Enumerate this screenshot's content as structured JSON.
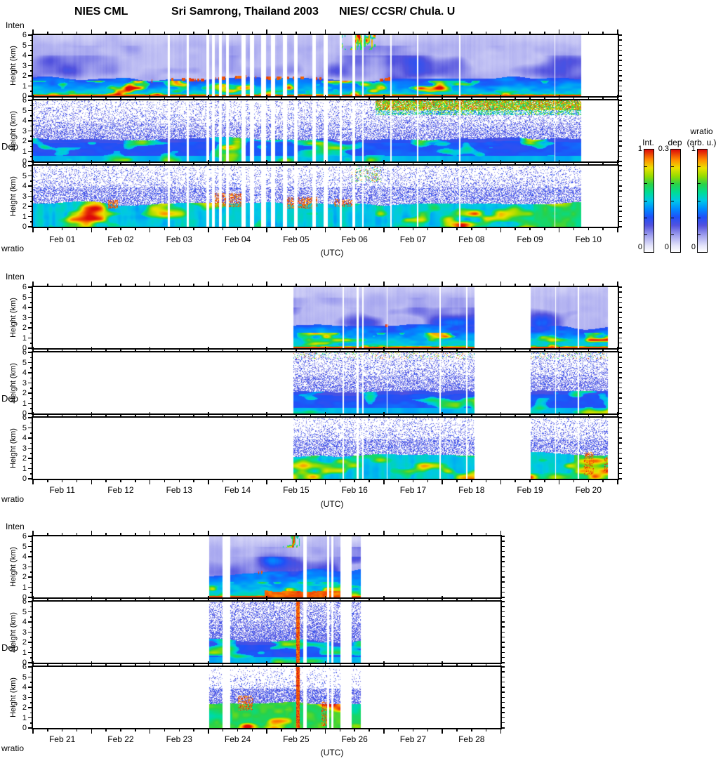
{
  "title": {
    "instrument": "NIES CML",
    "site": "Sri Samrong, Thailand 2003",
    "institutions": "NIES/ CCSR/ Chula. U"
  },
  "panel_labels": {
    "top": "Inten",
    "middle": "Dep",
    "bottom": "wratio"
  },
  "axis": {
    "ylabel": "Height (km)",
    "xlabel": "(UTC)",
    "ytick_labels": [
      "0",
      "1",
      "2",
      "3",
      "4",
      "5",
      "6"
    ]
  },
  "colorbars": [
    {
      "title": "Int.",
      "subtitle": "",
      "max": "1",
      "min": "0"
    },
    {
      "title": "dep",
      "subtitle": "",
      "max": "0.3",
      "min": "0"
    },
    {
      "title": "wratio",
      "subtitle": "(arb. u.)",
      "max": "1",
      "min": "0"
    }
  ],
  "chart_data": {
    "type": "heatmap",
    "description": "Lidar time-height quicklooks for February 2003 at Sri Samrong, Thailand: rows are backscatter intensity (Inten), depolarization (Dep) and scattering ratio (wratio); three stacked date groups Feb 01-10, Feb 11-20, Feb 21-28, height 0-6 km, time axis in UTC.",
    "height_range_km": [
      0,
      6
    ],
    "ytick_km": [
      0,
      1,
      2,
      3,
      4,
      5,
      6
    ],
    "rows": [
      "Inten",
      "Dep",
      "wratio"
    ],
    "colorbar_ranges": {
      "intensity": [
        0,
        1
      ],
      "depolarization": [
        0,
        0.3
      ],
      "wratio_arb_units": [
        0,
        1
      ]
    },
    "colormap": [
      [
        0.0,
        "#ffffff"
      ],
      [
        0.06,
        "#e4e4fa"
      ],
      [
        0.16,
        "#a2a2ee"
      ],
      [
        0.26,
        "#5252de"
      ],
      [
        0.34,
        "#2050f8"
      ],
      [
        0.42,
        "#008cff"
      ],
      [
        0.5,
        "#00c8e6"
      ],
      [
        0.58,
        "#00dc96"
      ],
      [
        0.66,
        "#28d24a"
      ],
      [
        0.74,
        "#96dc00"
      ],
      [
        0.82,
        "#ebe100"
      ],
      [
        0.9,
        "#ff8c00"
      ],
      [
        1.0,
        "#dc0a0a"
      ]
    ],
    "groups": [
      {
        "date_labels": [
          "Feb 01",
          "Feb 02",
          "Feb 03",
          "Feb 04",
          "Feb 05",
          "Feb 06",
          "Feb 07",
          "Feb 08",
          "Feb 09",
          "Feb 10"
        ],
        "n_days": 10,
        "coverage_days": [
          [
            0,
            9.37
          ]
        ],
        "gap_stripes_days": [
          [
            2.3,
            2.33
          ],
          [
            2.62,
            2.66
          ],
          [
            2.96,
            3.01
          ],
          [
            3.06,
            3.1
          ],
          [
            3.17,
            3.22
          ],
          [
            3.3,
            3.34
          ],
          [
            3.56,
            3.63
          ],
          [
            3.7,
            3.78
          ],
          [
            3.9,
            3.98
          ],
          [
            4.06,
            4.13
          ],
          [
            4.27,
            4.34
          ],
          [
            4.46,
            4.52
          ],
          [
            4.77,
            4.83
          ],
          [
            4.96,
            5.04
          ],
          [
            5.24,
            5.28
          ],
          [
            5.46,
            5.5
          ],
          [
            5.62,
            5.65
          ],
          [
            6.1,
            6.13
          ],
          [
            6.56,
            6.58
          ],
          [
            7.28,
            7.3
          ],
          [
            8.91,
            8.93
          ]
        ],
        "boundary_layer_top_km": 1.8,
        "features": {
          "bl_base": 1.8,
          "bl_amp": 0.55,
          "inten_patch": 0.45,
          "cloudtop": [
            [
              2.0,
              4.65
            ],
            [
              4.75,
              5.15
            ],
            [
              5.9,
              6.15
            ]
          ],
          "high_cloud": [
            [
              5.2,
              5.85,
              4.6
            ]
          ],
          "dep_hot": [
            [
              5.85,
              9.37
            ]
          ],
          "wr_red": [
            [
              1.28,
              1.45,
              1.8,
              2.6
            ],
            [
              3.05,
              3.6,
              1.9,
              3.3
            ],
            [
              4.3,
              4.85,
              1.8,
              2.9
            ],
            [
              5.15,
              5.5,
              1.9,
              2.7
            ]
          ],
          "wr_hc": [
            [
              5.45,
              5.95,
              4.4
            ]
          ],
          "wr_green": [
            [
              8.55,
              9.37
            ]
          ]
        }
      },
      {
        "date_labels": [
          "Feb 11",
          "Feb 12",
          "Feb 13",
          "Feb 14",
          "Feb 15",
          "Feb 16",
          "Feb 17",
          "Feb 18",
          "Feb 19",
          "Feb 20"
        ],
        "n_days": 10,
        "coverage_days": [
          [
            4.45,
            7.55
          ],
          [
            8.5,
            9.82
          ]
        ],
        "gap_stripes_days": [
          [
            5.29,
            5.31
          ],
          [
            5.53,
            5.56
          ],
          [
            5.63,
            5.65
          ],
          [
            6.04,
            6.06
          ],
          [
            6.95,
            6.97
          ],
          [
            7.4,
            7.42
          ],
          [
            8.92,
            8.94
          ],
          [
            9.31,
            9.33
          ]
        ],
        "boundary_layer_top_km": 2.2,
        "features": {
          "bl_base": 2.15,
          "bl_amp": 0.5,
          "inten_patch": 0.7,
          "cloudtop": [
            [
              5.9,
              6.2
            ]
          ],
          "dep_top_dots": true,
          "dep_speckle": 0.05,
          "wr_red": [
            [
              9.42,
              9.58,
              0.3,
              2.6
            ],
            [
              9.76,
              9.82,
              0.5,
              2.2
            ]
          ],
          "wr_green": [
            [
              9.25,
              9.75
            ]
          ]
        }
      },
      {
        "date_labels": [
          "Feb 21",
          "Feb 22",
          "Feb 23",
          "Feb 24",
          "Feb 25",
          "Feb 26",
          "Feb 27",
          "Feb 28"
        ],
        "n_days": 8,
        "coverage_days": [
          [
            3.01,
            3.24
          ],
          [
            3.37,
            5.25
          ],
          [
            5.44,
            5.6
          ]
        ],
        "gap_stripes_days": [
          [
            4.62,
            4.68
          ],
          [
            5.02,
            5.06
          ],
          [
            5.1,
            5.13
          ]
        ],
        "boundary_layer_top_km": 2.5,
        "features": {
          "bl_base": 2.5,
          "bl_amp": 0.7,
          "inten_patch": 0.75,
          "cloudtop": [
            [
              3.82,
              4.02
            ]
          ],
          "high_cloud": [
            [
              4.25,
              4.55,
              4.9
            ]
          ],
          "red_cols": [
            [
              4.5,
              4.56
            ]
          ],
          "ground_thick": [
            [
              3.95,
              5.25
            ]
          ],
          "dep_speckle": 0.22,
          "wr_mid": 0.15,
          "wr_top": -0.08,
          "wr_strong": true,
          "wr_red": [
            [
              3.5,
              3.75,
              1.7,
              3.2
            ],
            [
              4.93,
              5.05,
              0.2,
              2.6
            ]
          ],
          "wr_green": [
            [
              3.4,
              5.25
            ]
          ]
        }
      }
    ]
  }
}
